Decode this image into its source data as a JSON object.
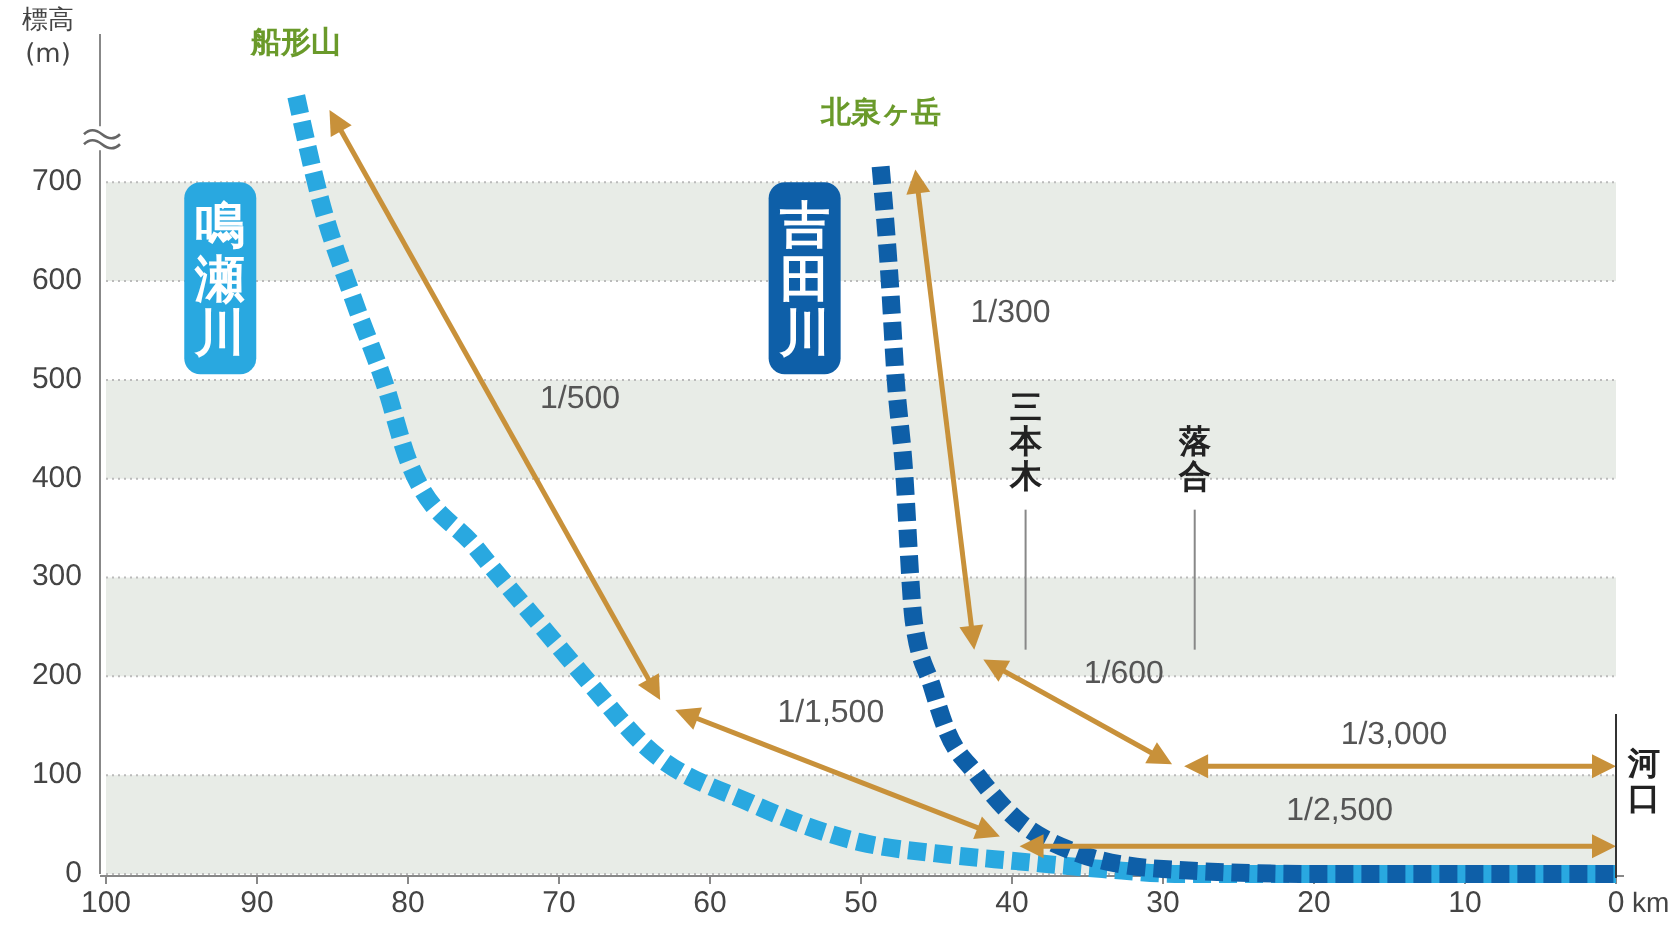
{
  "chart_data": {
    "type": "line",
    "ylabel": "標高\n(m)",
    "xlabel": "km",
    "xlim": [
      100,
      0
    ],
    "xticks": [
      100,
      90,
      80,
      70,
      60,
      50,
      40,
      30,
      20,
      10,
      0
    ],
    "ylim": [
      0,
      850
    ],
    "yticks": [
      0,
      100,
      200,
      300,
      400,
      500,
      600,
      700
    ],
    "grid": "y",
    "bands": [
      {
        "axis": "y",
        "from": 0,
        "to": 100,
        "color": "#e8ece7"
      },
      {
        "axis": "y",
        "from": 200,
        "to": 300,
        "color": "#e8ece7"
      },
      {
        "axis": "y",
        "from": 400,
        "to": 500,
        "color": "#e8ece7"
      },
      {
        "axis": "y",
        "from": 600,
        "to": 700,
        "color": "#e8ece7"
      }
    ],
    "legend": false,
    "line_style": "dashed",
    "marker": "none",
    "series": [
      {
        "name": "鳴瀬川",
        "color": "#29a8e0",
        "x": [
          87.4,
          85.8,
          83.6,
          81.5,
          80,
          75.5,
          71.4,
          67.8,
          64.4,
          57.2,
          50,
          44.5,
          39.7,
          34,
          28.7,
          15,
          0
        ],
        "values": [
          787,
          682,
          581,
          494,
          419,
          330,
          255,
          190,
          131,
          71,
          32,
          20,
          13,
          5,
          0,
          0,
          0
        ]
      },
      {
        "name": "吉田川",
        "color": "#0e5fa8",
        "x": [
          48.7,
          48.1,
          47.7,
          47.2,
          46.5,
          45.3,
          44.4,
          42.3,
          40.1,
          35.8,
          30,
          20,
          0
        ],
        "values": [
          716,
          601,
          500,
          419,
          255,
          190,
          148,
          100,
          61,
          22,
          5,
          0,
          0
        ]
      }
    ],
    "annotations": [
      {
        "text": "船形山",
        "x": 87.4,
        "y": 787
      },
      {
        "text": "北泉ヶ岳",
        "x": 48.7,
        "y": 716
      },
      "1/500",
      "1/1,500",
      "1/2,500",
      "1/300",
      "1/600",
      "1/3,000",
      "三本木",
      "落合",
      {
        "text": "河口",
        "x": 0,
        "y": 0
      }
    ]
  }
}
